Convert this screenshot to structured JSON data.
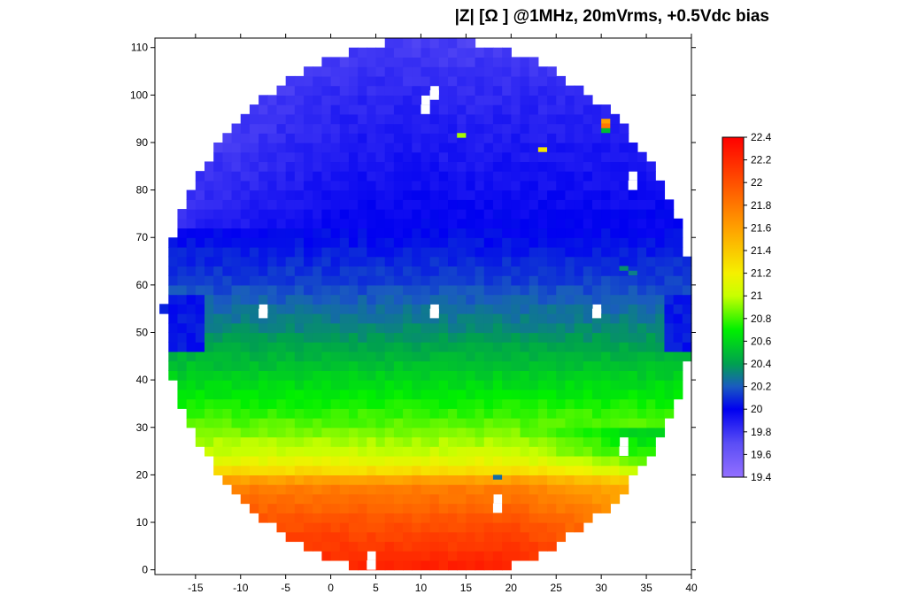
{
  "chart_data": {
    "type": "heatmap",
    "title": "|Z| [Ω ] @1MHz, 20mVrms, +0.5Vdc bias",
    "xlabel": "",
    "ylabel": "",
    "xlim": [
      -19.5,
      40
    ],
    "ylim": [
      -1,
      112
    ],
    "x_ticks": [
      -15,
      -10,
      -5,
      0,
      5,
      10,
      15,
      20,
      25,
      30,
      35,
      40
    ],
    "y_ticks": [
      0,
      10,
      20,
      30,
      40,
      50,
      60,
      70,
      80,
      90,
      100,
      110
    ],
    "wafer": {
      "center": [
        10.8,
        55
      ],
      "radius_x": 29.3,
      "radius_y": 56.8
    },
    "cell_size": {
      "dx": 1,
      "dy": 2
    },
    "value_profile": [
      {
        "y": 0,
        "value": 22.25
      },
      {
        "y": 10,
        "value": 22.0
      },
      {
        "y": 18,
        "value": 21.75
      },
      {
        "y": 21,
        "value": 21.3
      },
      {
        "y": 24,
        "value": 21.05
      },
      {
        "y": 30,
        "value": 20.85
      },
      {
        "y": 40,
        "value": 20.6
      },
      {
        "y": 50,
        "value": 20.35
      },
      {
        "y": 60,
        "value": 20.15
      },
      {
        "y": 70,
        "value": 20.02
      },
      {
        "y": 80,
        "value": 19.95
      },
      {
        "y": 100,
        "value": 19.85
      },
      {
        "y": 112,
        "value": 19.75
      }
    ],
    "outliers": [
      {
        "x": 14,
        "y": 91,
        "value": 20.95
      },
      {
        "x": 23,
        "y": 88,
        "value": 21.25
      },
      {
        "x": 30,
        "y": 94,
        "value": 21.6
      },
      {
        "x": 30,
        "y": 93,
        "value": 21.8
      },
      {
        "x": 30,
        "y": 92,
        "value": 20.5
      },
      {
        "x": 18,
        "y": 19,
        "value": 20.25
      },
      {
        "x": 32,
        "y": 63,
        "value": 20.35
      },
      {
        "x": 33,
        "y": 62,
        "value": 20.3
      }
    ],
    "missing_points": [
      {
        "x": 11,
        "y": 100
      },
      {
        "x": 10,
        "y": 97
      },
      {
        "x": 33,
        "y": 81
      },
      {
        "x": -8,
        "y": 54
      },
      {
        "x": 11,
        "y": 54
      },
      {
        "x": 29,
        "y": 54
      },
      {
        "x": 32,
        "y": 25
      },
      {
        "x": 18,
        "y": 13
      },
      {
        "x": 4,
        "y": 1
      }
    ],
    "colorbar": {
      "min": 19.4,
      "max": 22.4,
      "ticks": [
        22.4,
        22.2,
        22,
        21.8,
        21.6,
        21.4,
        21.2,
        21,
        20.8,
        20.6,
        20.4,
        20.2,
        20,
        19.8,
        19.6,
        19.4
      ],
      "colors": [
        {
          "v": 19.4,
          "c": "#9370ff"
        },
        {
          "v": 19.7,
          "c": "#5a4df5"
        },
        {
          "v": 20.0,
          "c": "#0000f0"
        },
        {
          "v": 20.2,
          "c": "#1a5bc0"
        },
        {
          "v": 20.4,
          "c": "#00a050"
        },
        {
          "v": 20.7,
          "c": "#00f000"
        },
        {
          "v": 21.0,
          "c": "#c8ff00"
        },
        {
          "v": 21.2,
          "c": "#f5f000"
        },
        {
          "v": 21.6,
          "c": "#ffa000"
        },
        {
          "v": 22.0,
          "c": "#ff5000"
        },
        {
          "v": 22.4,
          "c": "#ff0000"
        }
      ]
    }
  }
}
